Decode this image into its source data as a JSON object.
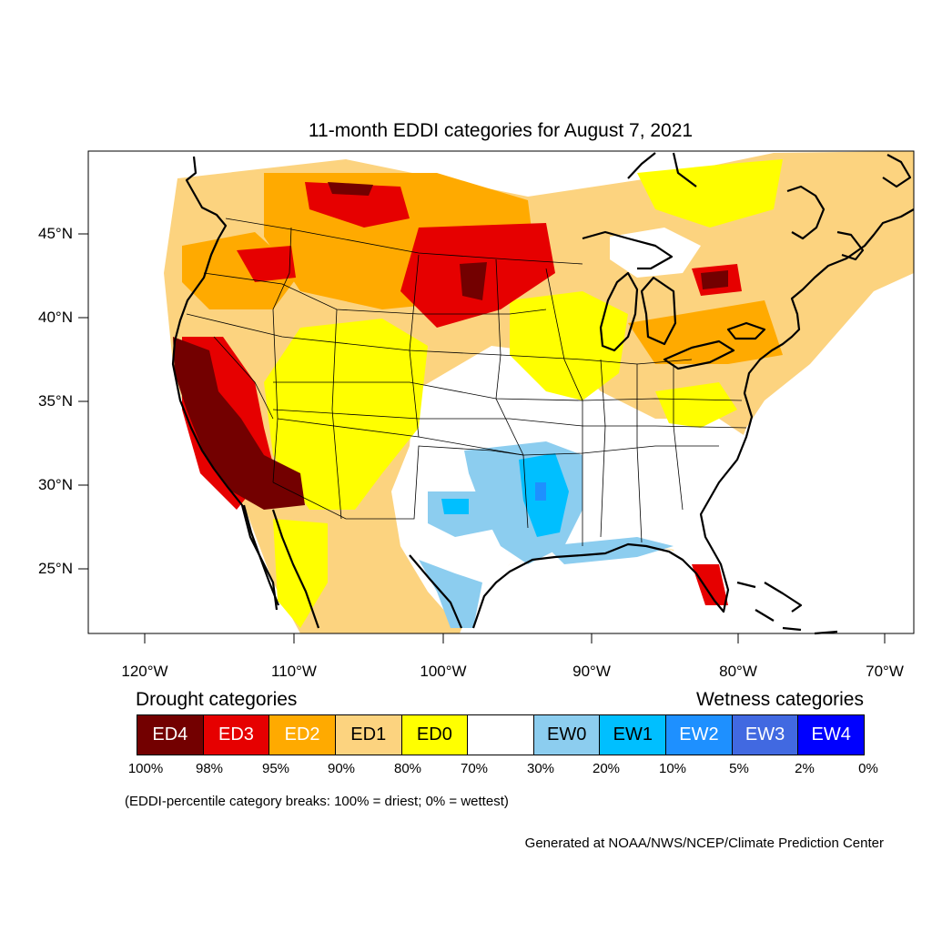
{
  "title": "11-month EDDI categories for August 7, 2021",
  "lat_labels": [
    "45°N",
    "40°N",
    "35°N",
    "30°N",
    "25°N"
  ],
  "lon_labels": [
    "120°W",
    "110°W",
    "100°W",
    "90°W",
    "80°W",
    "70°W"
  ],
  "legend": {
    "drought_heading": "Drought categories",
    "wetness_heading": "Wetness categories",
    "categories": [
      {
        "label": "ED4",
        "color": "#730000",
        "text_color": "#ffffff"
      },
      {
        "label": "ED3",
        "color": "#e60000",
        "text_color": "#ffffff"
      },
      {
        "label": "ED2",
        "color": "#ffaa00",
        "text_color": "#ffffff"
      },
      {
        "label": "ED1",
        "color": "#fcd37f",
        "text_color": "#000000"
      },
      {
        "label": "ED0",
        "color": "#ffff00",
        "text_color": "#000000"
      },
      {
        "label": "",
        "color": "#ffffff",
        "text_color": "#000000"
      },
      {
        "label": "EW0",
        "color": "#8ccdef",
        "text_color": "#000000"
      },
      {
        "label": "EW1",
        "color": "#00bfff",
        "text_color": "#000000"
      },
      {
        "label": "EW2",
        "color": "#1e90ff",
        "text_color": "#ffffff"
      },
      {
        "label": "EW3",
        "color": "#4169e1",
        "text_color": "#ffffff"
      },
      {
        "label": "EW4",
        "color": "#0000ff",
        "text_color": "#ffffff"
      }
    ],
    "percent_breaks": [
      "100%",
      "98%",
      "95%",
      "90%",
      "80%",
      "70%",
      "30%",
      "20%",
      "10%",
      "5%",
      "2%",
      "0%"
    ]
  },
  "note": "(EDDI-percentile category breaks: 100% = driest; 0% = wettest)",
  "credit": "Generated at NOAA/NWS/NCEP/Climate Prediction Center"
}
